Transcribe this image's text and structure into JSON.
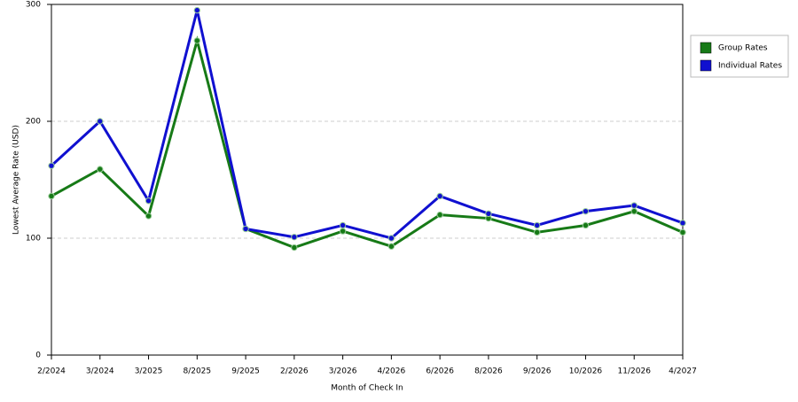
{
  "chart_data": {
    "type": "line",
    "x_label": "Month of Check In",
    "y_label": "Lowest Average Rate (USD)",
    "categories": [
      "2/2024",
      "3/2024",
      "3/2025",
      "8/2025",
      "9/2025",
      "2/2026",
      "3/2026",
      "4/2026",
      "6/2026",
      "8/2026",
      "9/2026",
      "10/2026",
      "11/2026",
      "4/2027"
    ],
    "series": [
      {
        "name": "Group Rates",
        "color": "#177a17",
        "values": [
          136,
          159,
          119,
          269,
          108,
          92,
          106,
          93,
          120,
          117,
          105,
          111,
          123,
          105
        ]
      },
      {
        "name": "Individual Rates",
        "color": "#1010d0",
        "values": [
          162,
          200,
          132,
          295,
          108,
          101,
          111,
          100,
          136,
          121,
          111,
          123,
          128,
          113
        ]
      }
    ],
    "ylim": [
      0,
      300
    ],
    "yticks": [
      0,
      100,
      200,
      300
    ],
    "grid": true,
    "legend": "right"
  }
}
